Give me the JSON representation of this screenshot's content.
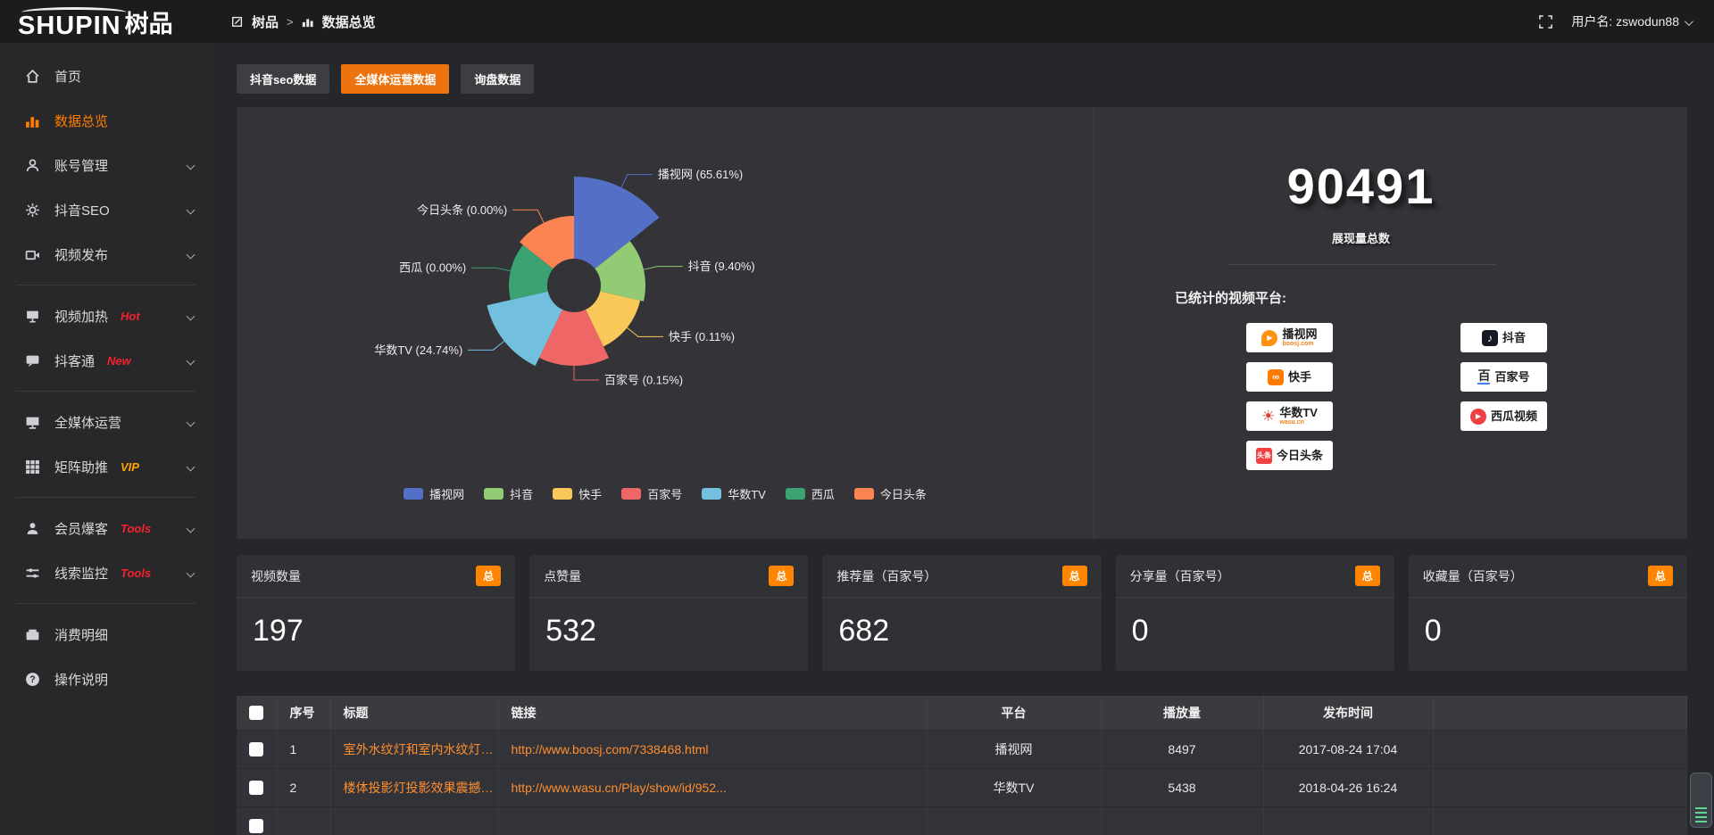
{
  "header": {
    "logo_main": "SHUPIN",
    "logo_cn": "树品",
    "breadcrumb": [
      "树品",
      "数据总览"
    ],
    "user_label": "用户名: zswodun88"
  },
  "sidebar": {
    "items": [
      {
        "label": "首页"
      },
      {
        "label": "数据总览",
        "active": true
      },
      {
        "label": "账号管理"
      },
      {
        "label": "抖音SEO"
      },
      {
        "label": "视频发布"
      },
      {
        "label": "视频加热",
        "badge": "Hot"
      },
      {
        "label": "抖客通",
        "badge": "New"
      },
      {
        "label": "全媒体运营"
      },
      {
        "label": "矩阵助推",
        "badge": "VIP"
      },
      {
        "label": "会员爆客",
        "badge": "Tools"
      },
      {
        "label": "线索监控",
        "badge": "Tools"
      },
      {
        "label": "消费明细"
      },
      {
        "label": "操作说明"
      }
    ]
  },
  "tabs": [
    {
      "label": "抖音seo数据",
      "active": false
    },
    {
      "label": "全媒体运营数据",
      "active": true
    },
    {
      "label": "询盘数据",
      "active": false
    }
  ],
  "chart_data": {
    "type": "pie",
    "variant": "nightingale-rose",
    "inner_radius": 30,
    "legend_position": "bottom",
    "slices": [
      {
        "name": "播视网",
        "pct": "65.61%",
        "color": "#5470c6",
        "radius": 122
      },
      {
        "name": "抖音",
        "pct": "9.40%",
        "color": "#91cc75",
        "radius": 80
      },
      {
        "name": "快手",
        "pct": "0.11%",
        "color": "#fac858",
        "radius": 76
      },
      {
        "name": "百家号",
        "pct": "0.15%",
        "color": "#ee6666",
        "radius": 90
      },
      {
        "name": "华数TV",
        "pct": "24.74%",
        "color": "#73c0de",
        "radius": 100
      },
      {
        "name": "西瓜",
        "pct": "0.00%",
        "color": "#3ba272",
        "radius": 73
      },
      {
        "name": "今日头条",
        "pct": "0.00%",
        "color": "#fc8452",
        "radius": 78
      }
    ]
  },
  "overview": {
    "total_value": "90491",
    "total_label": "展现量总数",
    "platforms_title": "已统计的视频平台:",
    "platforms": [
      {
        "name": "播视网",
        "sub": "boosj.com"
      },
      {
        "name": "快手"
      },
      {
        "name": "华数TV",
        "sub": "wasu.cn"
      },
      {
        "name": "今日头条"
      },
      {
        "name": "抖音"
      },
      {
        "name": "百家号"
      },
      {
        "name": "西瓜视频"
      }
    ]
  },
  "stats_cards": [
    {
      "title": "视频数量",
      "badge": "总",
      "value": "197"
    },
    {
      "title": "点赞量",
      "badge": "总",
      "value": "532"
    },
    {
      "title": "推荐量（百家号）",
      "badge": "总",
      "value": "682"
    },
    {
      "title": "分享量（百家号）",
      "badge": "总",
      "value": "0"
    },
    {
      "title": "收藏量（百家号）",
      "badge": "总",
      "value": "0"
    }
  ],
  "table": {
    "headers": [
      "序号",
      "标题",
      "链接",
      "平台",
      "播放量",
      "发布时间"
    ],
    "rows": [
      {
        "seq": "1",
        "title": "室外水纹灯和室内水纹灯的区别和简介",
        "link": "http://www.boosj.com/7338468.html",
        "platform": "播视网",
        "plays": "8497",
        "time": "2017-08-24 17:04"
      },
      {
        "seq": "2",
        "title": "楼体投影灯投影效果震撼上市",
        "link": "http://www.wasu.cn/Play/show/id/952...",
        "platform": "华数TV",
        "plays": "5438",
        "time": "2018-04-26 16:24"
      }
    ]
  },
  "colors": {
    "accent_orange": "#ec7310",
    "badge_orange": "#ff8400",
    "hot_red": "#f5222d",
    "vip_yellow": "#ffa502"
  }
}
